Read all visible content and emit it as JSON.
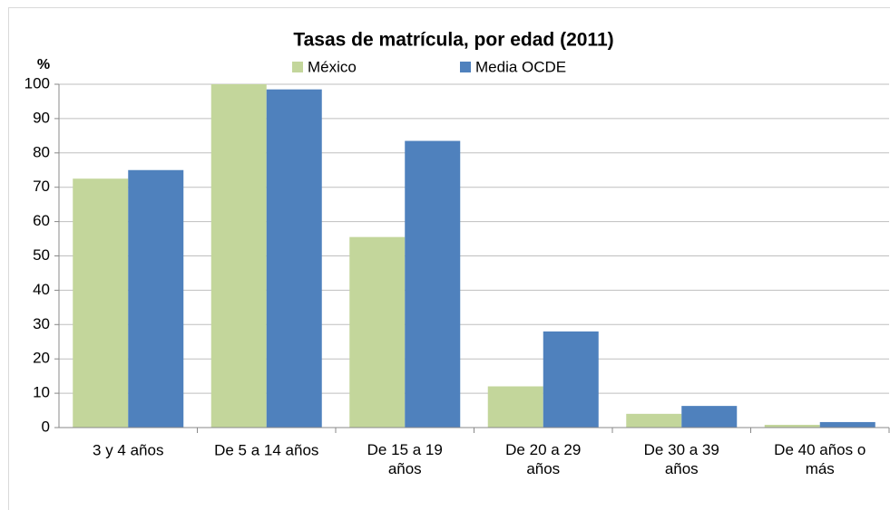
{
  "chart_data": {
    "type": "bar",
    "title": "Tasas de matrícula, por edad (2011)",
    "y_label": "%",
    "categories": [
      "3 y 4 años",
      "De 5 a 14 años",
      "De 15 a 19 años",
      "De 20 a 29 años",
      "De 30 a 39 años",
      "De 40 años o más"
    ],
    "series": [
      {
        "name": "México",
        "color": "#c3d69b",
        "values": [
          72.5,
          100,
          55.5,
          12,
          4,
          0.8
        ]
      },
      {
        "name": "Media OCDE",
        "color": "#4f81bd",
        "values": [
          75,
          98.5,
          83.5,
          28,
          6.3,
          1.6
        ]
      }
    ],
    "ylim": [
      0,
      100
    ],
    "yticks": [
      0,
      10,
      20,
      30,
      40,
      50,
      60,
      70,
      80,
      90,
      100
    ],
    "grid": true
  }
}
